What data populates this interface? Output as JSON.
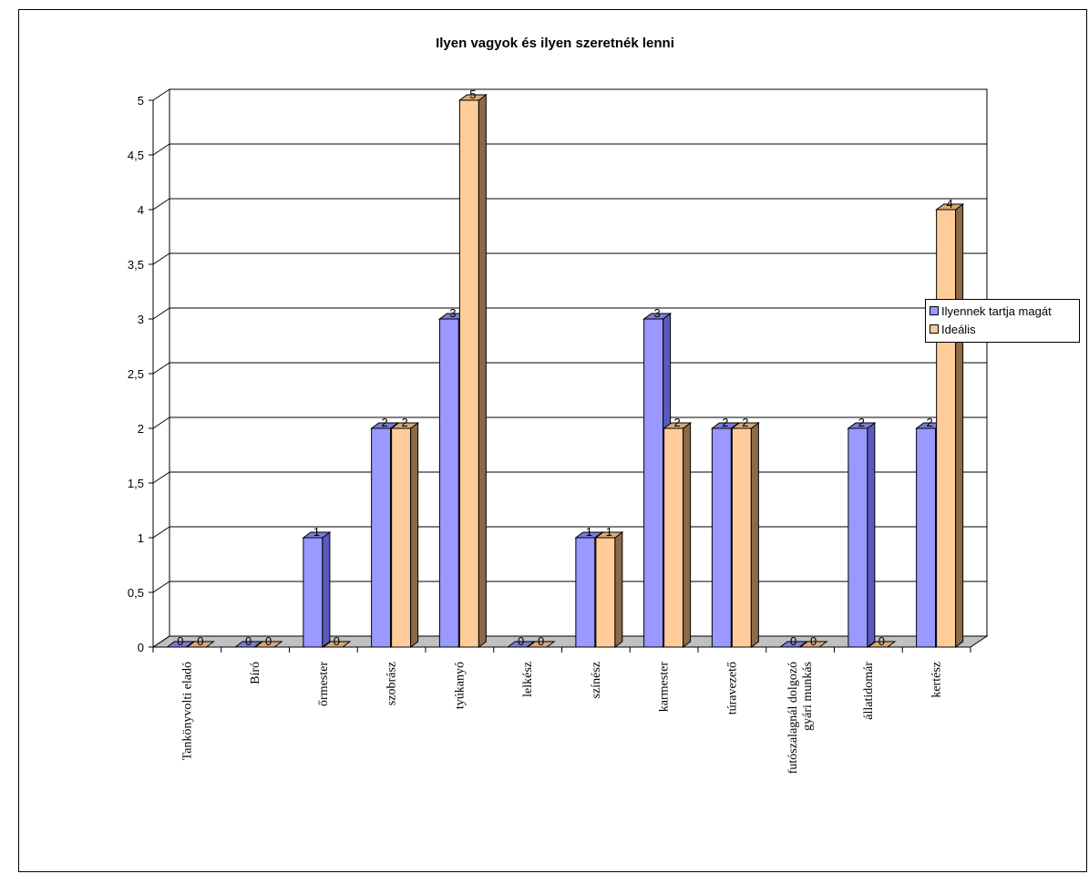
{
  "chart_data": {
    "type": "bar",
    "title": "Ilyen vagyok és ilyen szeretnék lenni",
    "categories": [
      "Tankönyvolti eladó",
      "Bíró",
      "őrmester",
      "szobrász",
      "tyúkanyó",
      "lelkész",
      "színész",
      "karmester",
      "túravezető",
      "futószalagnál dolgozó gyári munkás",
      "állatidomár",
      "kertész"
    ],
    "category_lines": [
      [
        "Tankönyvolti eladó"
      ],
      [
        "Bíró"
      ],
      [
        "őrmester"
      ],
      [
        "szobrász"
      ],
      [
        "tyúkanyó"
      ],
      [
        "lelkész"
      ],
      [
        "színész"
      ],
      [
        "karmester"
      ],
      [
        "túravezető"
      ],
      [
        "futószalagnál dolgozó",
        "gyári munkás"
      ],
      [
        "állatidomár"
      ],
      [
        "kertész"
      ]
    ],
    "series": [
      {
        "name": "Ilyennek tartja magát",
        "values": [
          0,
          0,
          1,
          2,
          3,
          0,
          1,
          3,
          2,
          0,
          2,
          2
        ],
        "color": "#9999ff",
        "side_color": "#5a5abf",
        "top_color": "#7b7bd9"
      },
      {
        "name": "Ideális",
        "values": [
          0,
          0,
          0,
          2,
          5,
          0,
          1,
          2,
          2,
          0,
          0,
          4
        ],
        "color": "#ffcc99",
        "side_color": "#8c6a48",
        "top_color": "#d9a877"
      }
    ],
    "ylim": [
      0,
      5
    ],
    "yticks": [
      "0",
      "0,5",
      "1",
      "1,5",
      "2",
      "2,5",
      "3",
      "3,5",
      "4",
      "4,5",
      "5"
    ],
    "xlabel": "",
    "ylabel": "",
    "grid": true,
    "legend_position": "right",
    "data_labels": true,
    "style": "3d-column"
  }
}
